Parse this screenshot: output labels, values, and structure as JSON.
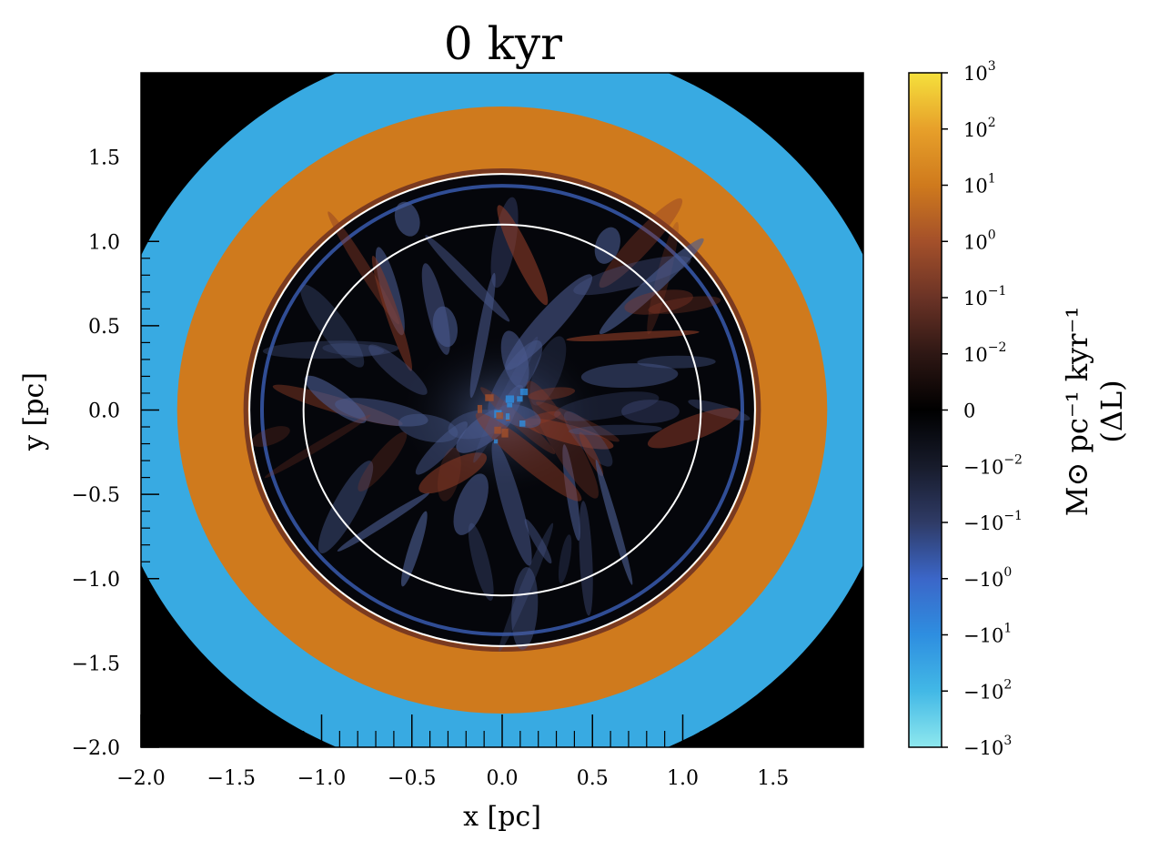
{
  "chart_data": {
    "type": "heatmap",
    "title": "0 kyr",
    "xlabel": "x [pc]",
    "ylabel": "y [pc]",
    "xlim": [
      -2.0,
      2.0
    ],
    "ylim": [
      -2.0,
      2.0
    ],
    "x_ticks": [
      "−2.0",
      "−1.5",
      "−1.0",
      "−0.5",
      "0.0",
      "0.5",
      "1.0",
      "1.5"
    ],
    "x_tick_values": [
      -2.0,
      -1.5,
      -1.0,
      -0.5,
      0.0,
      0.5,
      1.0,
      1.5
    ],
    "y_ticks": [
      "−2.0",
      "−1.5",
      "−1.0",
      "−0.5",
      "0.0",
      "0.5",
      "1.0",
      "1.5"
    ],
    "y_tick_values": [
      -2.0,
      -1.5,
      -1.0,
      -0.5,
      0.0,
      0.5,
      1.0,
      1.5
    ],
    "colorbar": {
      "label_line1": "M⊙ pc⁻¹ kyr⁻¹",
      "label_line2": "(ΔL)",
      "scale": "symlog",
      "ticks": [
        {
          "base": "10",
          "exp": "3"
        },
        {
          "base": "10",
          "exp": "2"
        },
        {
          "base": "10",
          "exp": "1"
        },
        {
          "base": "10",
          "exp": "0"
        },
        {
          "base": "10",
          "exp": "−1"
        },
        {
          "base": "10",
          "exp": "−2"
        },
        {
          "base": "0",
          "exp": ""
        },
        {
          "base": "−10",
          "exp": "−2"
        },
        {
          "base": "−10",
          "exp": "−1"
        },
        {
          "base": "−10",
          "exp": "0"
        },
        {
          "base": "−10",
          "exp": "1"
        },
        {
          "base": "−10",
          "exp": "2"
        },
        {
          "base": "−10",
          "exp": "3"
        }
      ],
      "colors_top_to_bottom": [
        "#f5e03c",
        "#e7a02a",
        "#cf7a1d",
        "#a4502a",
        "#6b3326",
        "#2e1714",
        "#000000",
        "#171b2b",
        "#2f3b66",
        "#3b66c8",
        "#2e8ee0",
        "#42b8e6",
        "#8ee8ee"
      ]
    },
    "regions": [
      {
        "name": "outer ring",
        "r_inner": 1.8,
        "r_outer": 2.2,
        "value_sign": "negative",
        "approx_value": "-10^1.5",
        "color": "#38aae2"
      },
      {
        "name": "middle ring",
        "r_inner": 1.4,
        "r_outer": 1.8,
        "value_sign": "positive",
        "approx_value": "10^1.2",
        "color": "#cf7a1d"
      },
      {
        "name": "inner turbulent disk",
        "r_inner": 0.0,
        "r_outer": 1.4,
        "value_sign": "mixed",
        "approx_value": "~0",
        "color": "#05060b"
      }
    ],
    "overlay_circles": [
      {
        "radius": 1.4,
        "color": "#ffffff"
      },
      {
        "radius": 1.1,
        "color": "#ffffff"
      }
    ]
  }
}
